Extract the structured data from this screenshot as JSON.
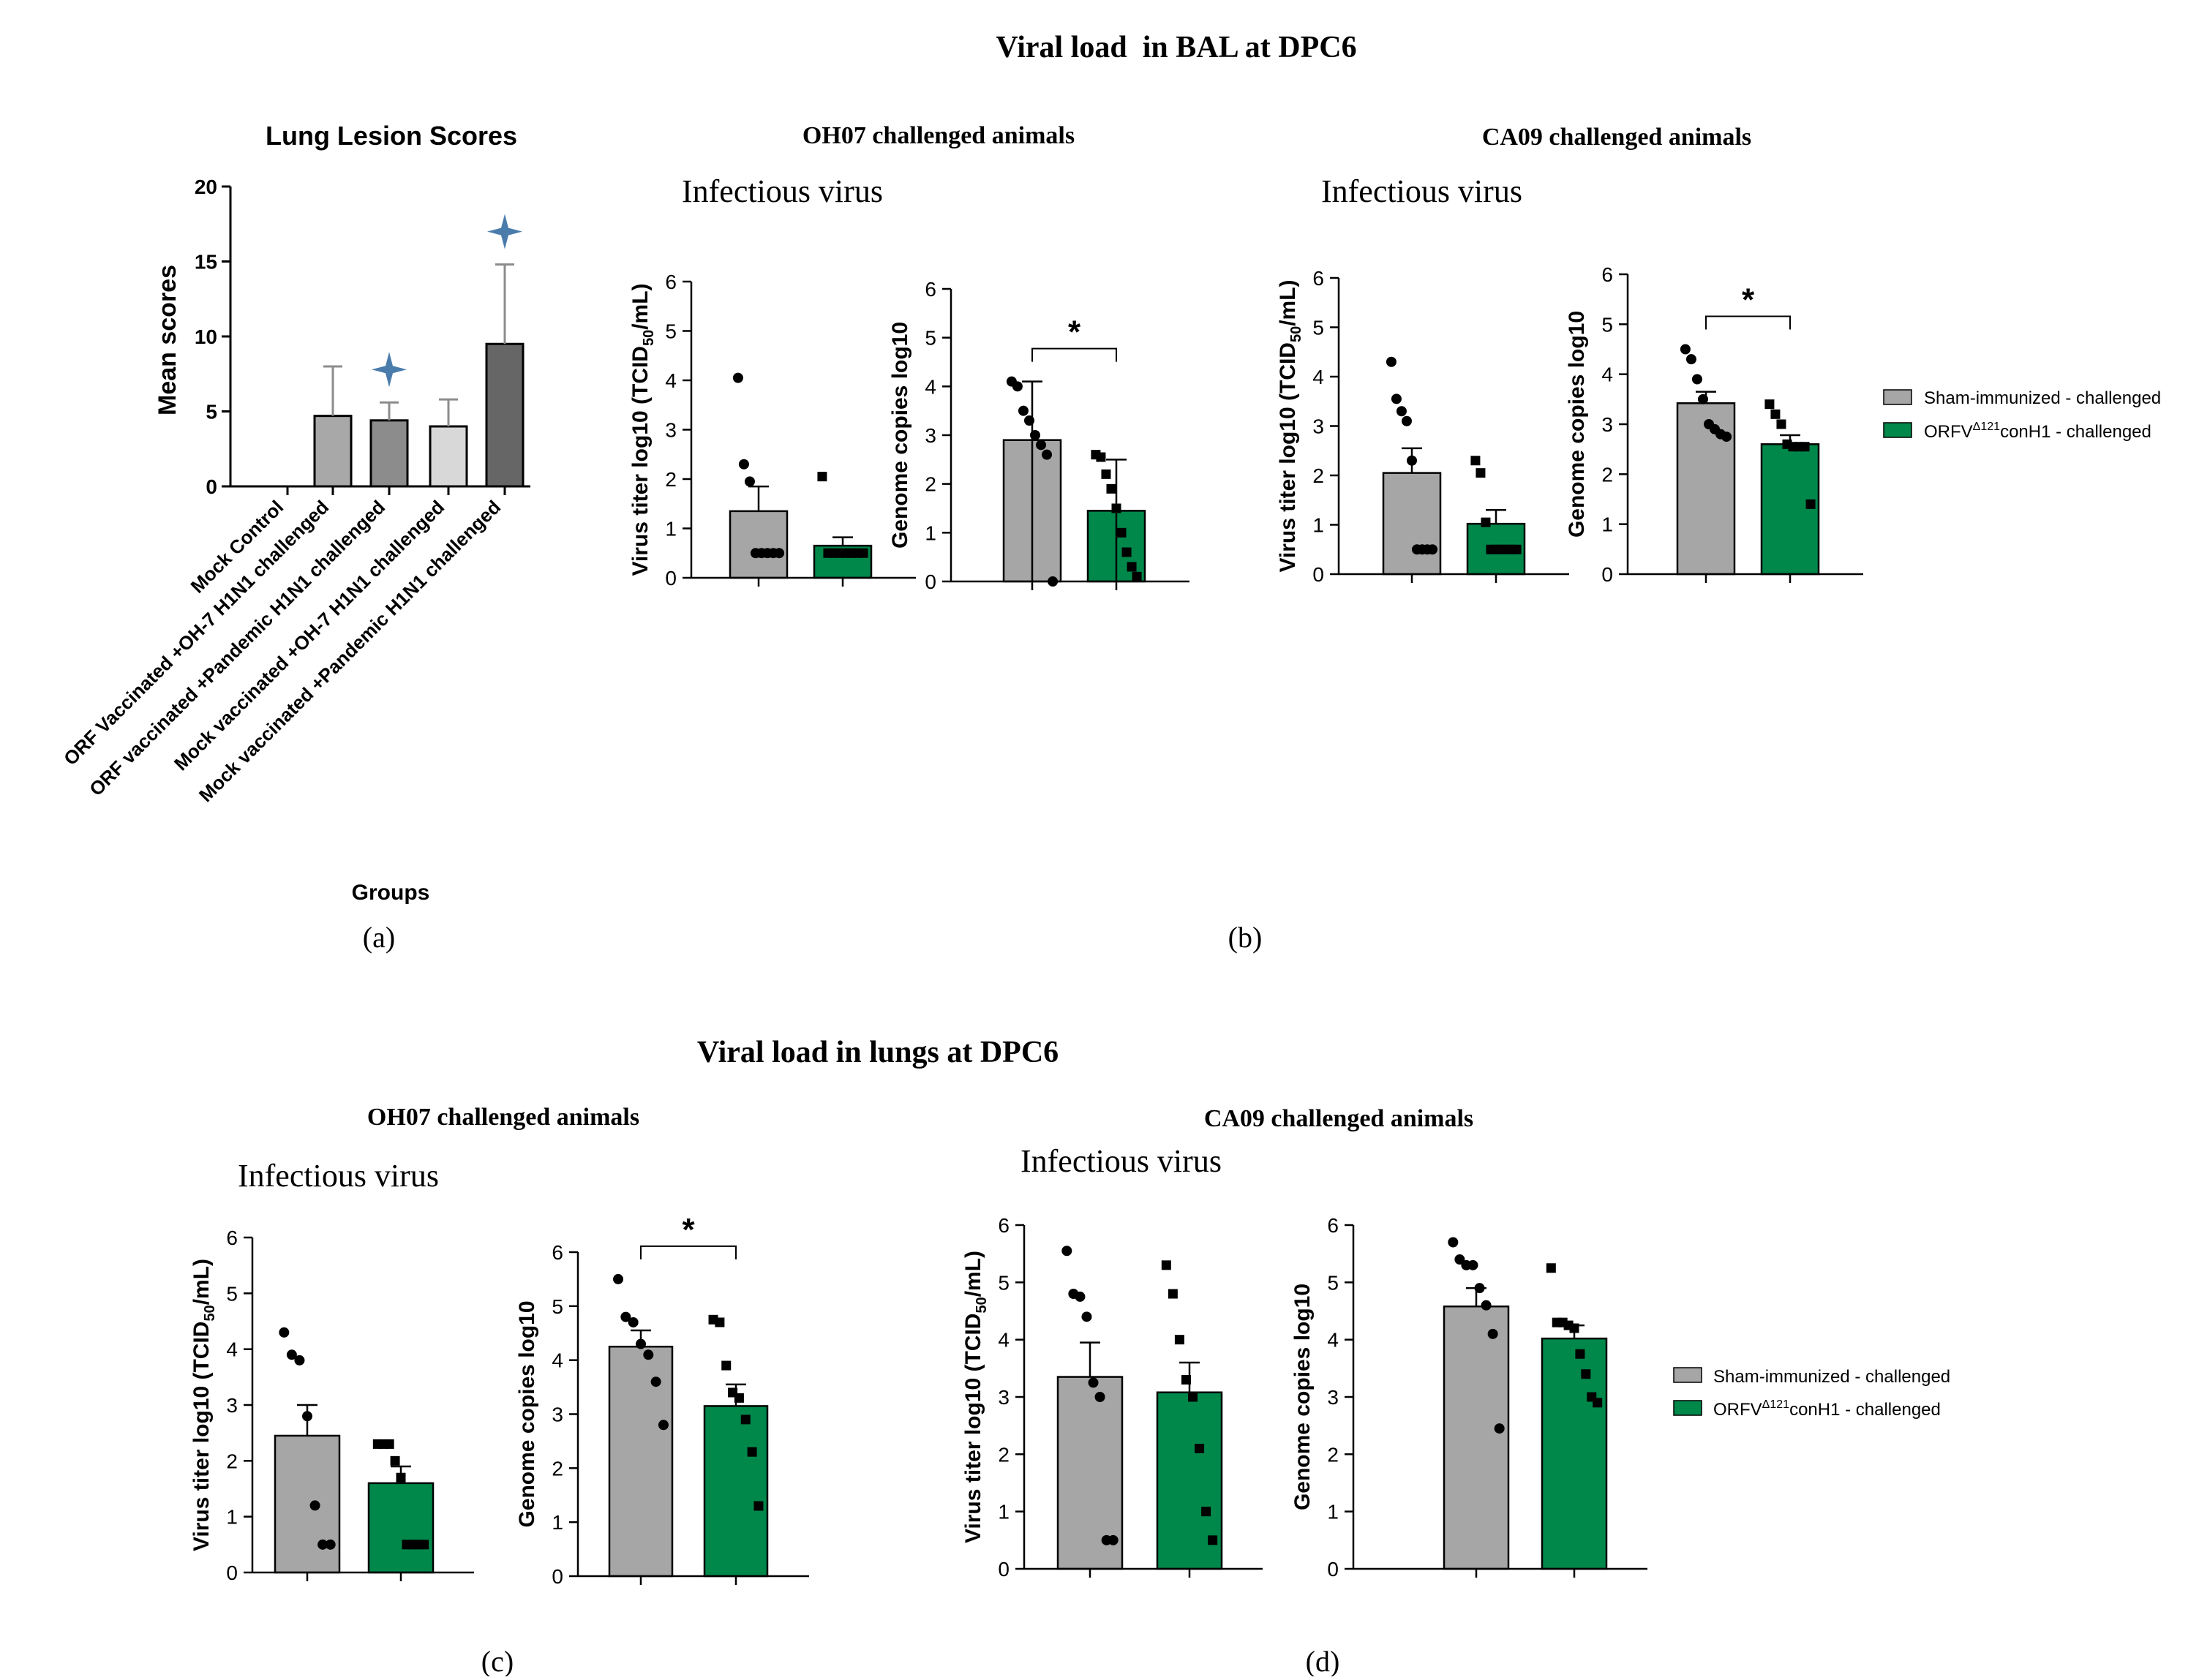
{
  "figure": {
    "bal_title": "Viral load  in BAL at DPC6",
    "lung_title": "Viral load in lungs at DPC6",
    "panel_labels": [
      "(a)",
      "(b)",
      "(c)",
      "(d)"
    ],
    "section_titles": {
      "b_oh07": "OH07 challenged animals",
      "b_ca09": "CA09 challenged animals",
      "c_oh07": "OH07 challenged animals",
      "d_ca09": "CA09 challenged animals"
    },
    "infectious_label": "Infectious virus",
    "legend_b": {
      "sham": "Sham-immunized - challenged",
      "orfv_prefix": "ORFV",
      "orfv_sup": "Δ121",
      "orfv_suffix": "conH1 - challenged"
    },
    "legend_d": {
      "sham": "Sham-immunized - challenged",
      "orfv_prefix": "ORFV",
      "orfv_sup": "Δ121",
      "orfv_suffix": "conH1 - challenged"
    }
  },
  "colors": {
    "sham": "#a6a6a6",
    "orfv": "#00884a",
    "lesion_light": "#a8a8a8",
    "lesion_mid": "#8c8c8c",
    "lesion_pale": "#d8d8d8",
    "lesion_dark": "#666666",
    "star": "#4a7cab",
    "axis": "#000000"
  },
  "chart_data": [
    {
      "id": "lesion",
      "type": "bar",
      "title": "Lung Lesion Scores",
      "xlabel": "Groups",
      "ylabel": "Mean scores",
      "ylim": [
        0,
        20
      ],
      "yticks": [
        "0",
        "5",
        "10",
        "15",
        "20"
      ],
      "categories": [
        "Mock Control",
        "ORF Vaccinated +OH-7 H1N1 challenged",
        "ORF vaccinated +Pandemic H1N1 challenged",
        "Mock vaccinated +OH-7 H1N1 challenged",
        "Mock vaccinated +Pandemic H1N1 challenged"
      ],
      "values": [
        0,
        4.7,
        4.4,
        4.0,
        9.5
      ],
      "error_upper": [
        0,
        8.0,
        5.6,
        5.8,
        14.8
      ],
      "stars_on": [
        2,
        4
      ]
    },
    {
      "id": "b1",
      "type": "bar",
      "ylabel": "Virus titer log10 (TCID",
      "ylabel_sub": "50",
      "ylabel_tail": "/mL)",
      "ylim": [
        0,
        6
      ],
      "yticks": [
        "0",
        "1",
        "2",
        "3",
        "4",
        "5",
        "6"
      ],
      "series": [
        {
          "name": "Sham-immunized - challenged",
          "mean": 1.35,
          "err_hi": 1.85,
          "err_lo": null,
          "points": [
            4.05,
            2.3,
            1.95,
            0.5,
            0.5,
            0.5,
            0.5,
            0.5
          ]
        },
        {
          "name": "ORFVΔ121conH1 - challenged",
          "mean": 0.65,
          "err_hi": 0.82,
          "err_lo": null,
          "points": [
            2.05,
            0.5,
            0.5,
            0.5,
            0.5,
            0.5,
            0.5,
            0.5
          ]
        }
      ],
      "significance": ""
    },
    {
      "id": "b2",
      "type": "bar",
      "ylabel": "Genome copies log10",
      "ylim": [
        0,
        6
      ],
      "yticks": [
        "0",
        "1",
        "2",
        "3",
        "4",
        "5",
        "6"
      ],
      "series": [
        {
          "name": "Sham-immunized - challenged",
          "mean": 2.9,
          "err_hi": 4.1,
          "err_lo": 0,
          "points": [
            4.1,
            4.0,
            3.5,
            3.3,
            3.0,
            2.8,
            2.6,
            0.0
          ]
        },
        {
          "name": "ORFVΔ121conH1 - challenged",
          "mean": 1.45,
          "err_hi": 2.5,
          "err_lo": 0,
          "points": [
            2.6,
            2.55,
            2.2,
            1.9,
            1.5,
            1.0,
            0.6,
            0.3,
            0.1
          ]
        }
      ],
      "significance": "*"
    },
    {
      "id": "b3",
      "type": "bar",
      "ylabel": "Virus titer log10 (TCID",
      "ylabel_sub": "50",
      "ylabel_tail": "/mL)",
      "ylim": [
        0,
        6
      ],
      "yticks": [
        "0",
        "1",
        "2",
        "3",
        "4",
        "5",
        "6"
      ],
      "series": [
        {
          "name": "Sham-immunized - challenged",
          "mean": 2.05,
          "err_hi": 2.55,
          "err_lo": null,
          "points": [
            4.3,
            3.55,
            3.3,
            3.1,
            2.3,
            0.5,
            0.5,
            0.5,
            0.5
          ]
        },
        {
          "name": "ORFVΔ121conH1 - challenged",
          "mean": 1.02,
          "err_hi": 1.3,
          "err_lo": null,
          "points": [
            2.3,
            2.05,
            1.05,
            0.5,
            0.5,
            0.5,
            0.5,
            0.5,
            0.5
          ]
        }
      ],
      "significance": ""
    },
    {
      "id": "b4",
      "type": "bar",
      "ylabel": "Genome copies log10",
      "ylim": [
        0,
        6
      ],
      "yticks": [
        "0",
        "1",
        "2",
        "3",
        "4",
        "5",
        "6"
      ],
      "series": [
        {
          "name": "Sham-immunized - challenged",
          "mean": 3.42,
          "err_hi": 3.65,
          "err_lo": null,
          "points": [
            4.5,
            4.3,
            3.9,
            3.5,
            3.0,
            2.9,
            2.8,
            2.75
          ]
        },
        {
          "name": "ORFVΔ121conH1 - challenged",
          "mean": 2.6,
          "err_hi": 2.78,
          "err_lo": null,
          "points": [
            3.4,
            3.2,
            3.0,
            2.6,
            2.55,
            2.55,
            2.55,
            1.4
          ]
        }
      ],
      "significance": "*"
    },
    {
      "id": "c1",
      "type": "bar",
      "ylabel": "Virus titer log10 (TCID",
      "ylabel_sub": "50",
      "ylabel_tail": "/mL)",
      "ylim": [
        0,
        6
      ],
      "yticks": [
        "0",
        "1",
        "2",
        "3",
        "4",
        "5",
        "6"
      ],
      "series": [
        {
          "name": "Sham-immunized - challenged",
          "mean": 2.45,
          "err_hi": 3.0,
          "err_lo": null,
          "points": [
            4.3,
            3.9,
            3.8,
            2.8,
            1.2,
            0.5,
            0.5
          ]
        },
        {
          "name": "ORFVΔ121conH1 - challenged",
          "mean": 1.6,
          "err_hi": 1.9,
          "err_lo": null,
          "points": [
            2.3,
            2.3,
            2.3,
            2.0,
            1.7,
            0.5,
            0.5,
            0.5,
            0.5
          ]
        }
      ],
      "significance": ""
    },
    {
      "id": "c2",
      "type": "bar",
      "ylabel": "Genome copies log10",
      "ylim": [
        0,
        6
      ],
      "yticks": [
        "0",
        "1",
        "2",
        "3",
        "4",
        "5",
        "6"
      ],
      "series": [
        {
          "name": "Sham-immunized - challenged",
          "mean": 4.25,
          "err_hi": 4.55,
          "err_lo": null,
          "points": [
            5.5,
            4.8,
            4.7,
            4.3,
            4.1,
            3.6,
            2.8
          ]
        },
        {
          "name": "ORFVΔ121conH1 - challenged",
          "mean": 3.15,
          "err_hi": 3.55,
          "err_lo": null,
          "points": [
            4.75,
            4.7,
            3.9,
            3.4,
            3.3,
            2.9,
            2.3,
            1.3
          ]
        }
      ],
      "significance": "*"
    },
    {
      "id": "d1",
      "type": "bar",
      "ylabel": "Virus titer log10 (TCID",
      "ylabel_sub": "50",
      "ylabel_tail": "/mL)",
      "ylim": [
        0,
        6
      ],
      "yticks": [
        "0",
        "1",
        "2",
        "3",
        "4",
        "5",
        "6"
      ],
      "series": [
        {
          "name": "Sham-immunized - challenged",
          "mean": 3.35,
          "err_hi": 3.95,
          "err_lo": null,
          "points": [
            5.55,
            4.8,
            4.75,
            4.4,
            3.25,
            3.0,
            0.5,
            0.5
          ]
        },
        {
          "name": "ORFVΔ121conH1 - challenged",
          "mean": 3.08,
          "err_hi": 3.6,
          "err_lo": null,
          "points": [
            5.3,
            4.8,
            4.0,
            3.3,
            3.0,
            2.1,
            1.0,
            0.5
          ]
        }
      ],
      "significance": ""
    },
    {
      "id": "d2",
      "type": "bar",
      "ylabel": "Genome copies log10",
      "ylim": [
        0,
        6
      ],
      "yticks": [
        "0",
        "1",
        "2",
        "3",
        "4",
        "5",
        "6"
      ],
      "series": [
        {
          "name": "Sham-immunized - challenged",
          "mean": 4.58,
          "err_hi": 4.9,
          "err_lo": null,
          "points": [
            5.7,
            5.4,
            5.3,
            5.3,
            4.9,
            4.6,
            4.1,
            2.45
          ]
        },
        {
          "name": "ORFVΔ121conH1 - challenged",
          "mean": 4.02,
          "err_hi": 4.25,
          "err_lo": null,
          "points": [
            5.25,
            4.3,
            4.3,
            4.25,
            4.2,
            3.75,
            3.4,
            3.0,
            2.9
          ]
        }
      ],
      "significance": ""
    }
  ]
}
